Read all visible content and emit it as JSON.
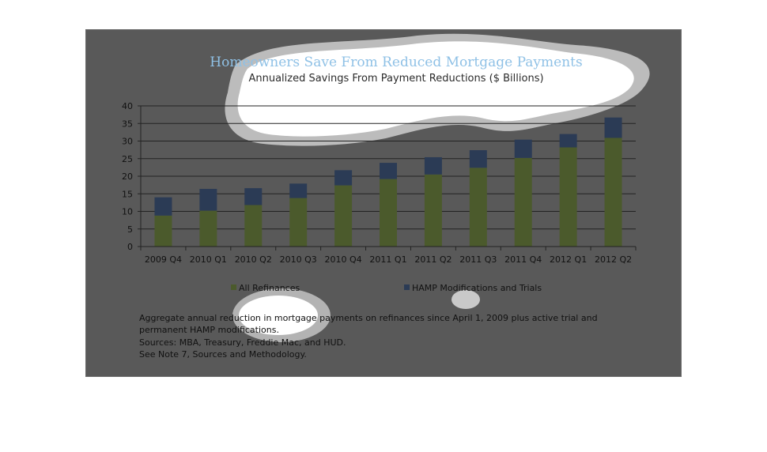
{
  "chart_data": {
    "type": "bar",
    "stacked": true,
    "title": "Homeowners Save From Reduced Mortgage Payments",
    "subtitle": "Annualized Savings From Payment Reductions ($ Billions)",
    "categories": [
      "2009 Q4",
      "2010 Q1",
      "2010 Q2",
      "2010 Q3",
      "2010 Q4",
      "2011 Q1",
      "2011 Q2",
      "2011 Q3",
      "2011 Q4",
      "2012 Q1",
      "2012 Q2"
    ],
    "series": [
      {
        "name": "All Refinances",
        "color": "#4b5a2c",
        "values": [
          8.8,
          10.2,
          11.8,
          13.8,
          17.4,
          19.2,
          20.5,
          22.4,
          25.2,
          28.2,
          30.9
        ]
      },
      {
        "name": "HAMP Modifications and Trials",
        "color": "#2b3b55",
        "values": [
          5.2,
          6.2,
          4.8,
          4.1,
          4.3,
          4.6,
          4.9,
          5.0,
          5.2,
          3.8,
          5.8
        ]
      }
    ],
    "yticks": [
      "0",
      "5",
      "10",
      "15",
      "20",
      "25",
      "30",
      "35",
      "40"
    ],
    "ylim": [
      0,
      40
    ],
    "grid": true,
    "legend": "bottom"
  },
  "notes": [
    "Aggregate annual reduction in mortgage payments on refinances since April 1, 2009 plus active trial and",
    "permanent HAMP modifications.",
    "Sources:  MBA, Treasury, Freddie Mac, and HUD.",
    "See Note 7, Sources and Methodology."
  ]
}
